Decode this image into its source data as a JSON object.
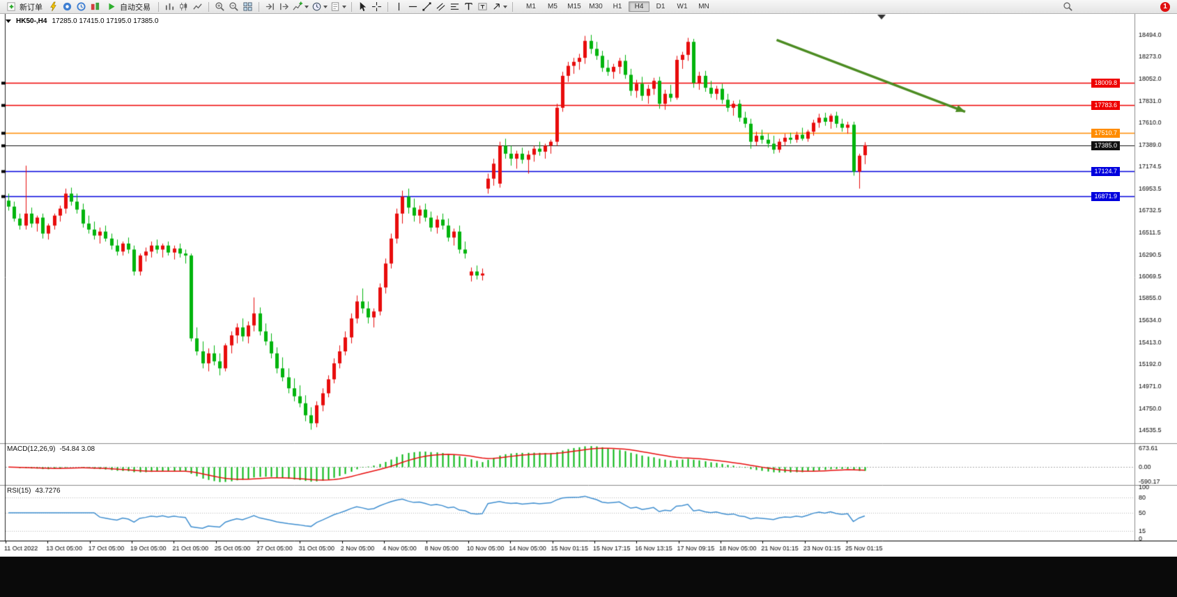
{
  "toolbar": {
    "new_order_label": "新订单",
    "auto_trading_label": "自动交易",
    "timeframes": [
      "M1",
      "M5",
      "M15",
      "M30",
      "H1",
      "H4",
      "D1",
      "W1",
      "MN"
    ],
    "active_timeframe": "H4",
    "notification_count": "1",
    "icon_names": [
      "new-order-icon",
      "lightning-icon",
      "terminal-icon",
      "navigator-icon",
      "market-watch-icon",
      "auto-trading-play-icon",
      "bar-chart-icon",
      "candlestick-icon",
      "line-chart-icon",
      "zoom-in-icon",
      "zoom-out-icon",
      "tile-windows-icon",
      "auto-scroll-icon",
      "chart-shift-icon",
      "indicators-icon",
      "periods-icon",
      "templates-icon",
      "cursor-icon",
      "crosshair-icon",
      "vertical-line-icon",
      "horizontal-line-icon",
      "trendline-icon",
      "channel-icon",
      "fibonacci-icon",
      "text-icon",
      "label-icon",
      "arrows-icon",
      "search-icon"
    ]
  },
  "chart_data": [
    {
      "type": "candlestick",
      "symbol": "HK50-,H4",
      "timeframe": "H4",
      "ohlc_display": "17285.0 17415.0 17195.0 17385.0",
      "ylim": [
        14400,
        18700
      ],
      "y_axis_labels": [
        "18494.0",
        "18273.0",
        "18052.0",
        "17831.0",
        "17610.0",
        "17389.0",
        "17174.5",
        "16953.5",
        "16732.5",
        "16511.5",
        "16290.5",
        "16069.5",
        "15855.0",
        "15634.0",
        "15413.0",
        "15192.0",
        "14971.0",
        "14750.0",
        "14535.5"
      ],
      "x_axis_labels": [
        "11 Oct 2022",
        "13 Oct 05:00",
        "17 Oct 05:00",
        "19 Oct 05:00",
        "21 Oct 05:00",
        "25 Oct 05:00",
        "27 Oct 05:00",
        "31 Oct 05:00",
        "2 Nov 05:00",
        "4 Nov 05:00",
        "8 Nov 05:00",
        "10 Nov 05:00",
        "14 Nov 05:00",
        "15 Nov 01:15",
        "15 Nov 17:15",
        "16 Nov 13:15",
        "17 Nov 09:15",
        "18 Nov 05:00",
        "21 Nov 01:15",
        "23 Nov 01:15",
        "25 Nov 01:15"
      ],
      "colors": {
        "up": "#e80c0c",
        "down": "#00b40c",
        "background": "#ffffff",
        "axis_text": "#000000"
      },
      "hlines": [
        {
          "value": 18009.8,
          "label": "18009.8",
          "color": "#ee0000"
        },
        {
          "value": 17783.6,
          "label": "17783.6",
          "color": "#ee0000"
        },
        {
          "value": 17510.7,
          "label": "17510.7",
          "color": "#ff8c00"
        },
        {
          "value": 17385.0,
          "label": "17385.0",
          "color": "#111111"
        },
        {
          "value": 17124.7,
          "label": "17124.7",
          "color": "#0000dd"
        },
        {
          "value": 16871.9,
          "label": "16871.9",
          "color": "#0000dd"
        }
      ],
      "trend_arrow": {
        "x_frac_start": 0.683,
        "price_start": 18440,
        "x_frac_end": 0.85,
        "price_end": 17720,
        "color": "#4c8c22"
      },
      "candles": [
        [
          16830,
          16900,
          16730,
          16770
        ],
        [
          16770,
          16820,
          16620,
          16650
        ],
        [
          16650,
          16700,
          16540,
          16580
        ],
        [
          16580,
          17180,
          16540,
          16700
        ],
        [
          16700,
          16760,
          16560,
          16600
        ],
        [
          16600,
          16680,
          16520,
          16660
        ],
        [
          16660,
          16700,
          16450,
          16500
        ],
        [
          16500,
          16600,
          16440,
          16580
        ],
        [
          16580,
          16700,
          16540,
          16680
        ],
        [
          16680,
          16780,
          16620,
          16750
        ],
        [
          16750,
          16950,
          16700,
          16900
        ],
        [
          16900,
          16960,
          16780,
          16820
        ],
        [
          16820,
          16900,
          16700,
          16740
        ],
        [
          16740,
          16800,
          16560,
          16600
        ],
        [
          16600,
          16680,
          16500,
          16540
        ],
        [
          16540,
          16620,
          16440,
          16480
        ],
        [
          16480,
          16560,
          16400,
          16520
        ],
        [
          16520,
          16580,
          16420,
          16450
        ],
        [
          16450,
          16500,
          16340,
          16380
        ],
        [
          16380,
          16440,
          16280,
          16320
        ],
        [
          16320,
          16420,
          16280,
          16400
        ],
        [
          16400,
          16460,
          16300,
          16340
        ],
        [
          16340,
          16380,
          16080,
          16120
        ],
        [
          16120,
          16300,
          16080,
          16280
        ],
        [
          16280,
          16360,
          16220,
          16320
        ],
        [
          16320,
          16420,
          16260,
          16380
        ],
        [
          16380,
          16440,
          16300,
          16340
        ],
        [
          16340,
          16400,
          16260,
          16380
        ],
        [
          16380,
          16420,
          16280,
          16310
        ],
        [
          16310,
          16380,
          16240,
          16350
        ],
        [
          16350,
          16400,
          16260,
          16300
        ],
        [
          16300,
          16340,
          16200,
          16280
        ],
        [
          16280,
          16300,
          15420,
          15450
        ],
        [
          15450,
          15560,
          15280,
          15320
        ],
        [
          15320,
          15420,
          15150,
          15200
        ],
        [
          15200,
          15350,
          15120,
          15300
        ],
        [
          15300,
          15380,
          15180,
          15220
        ],
        [
          15220,
          15300,
          15080,
          15150
        ],
        [
          15150,
          15400,
          15120,
          15380
        ],
        [
          15380,
          15520,
          15300,
          15480
        ],
        [
          15480,
          15600,
          15400,
          15560
        ],
        [
          15560,
          15650,
          15420,
          15470
        ],
        [
          15470,
          15620,
          15400,
          15580
        ],
        [
          15580,
          15860,
          15520,
          15700
        ],
        [
          15700,
          15760,
          15480,
          15520
        ],
        [
          15520,
          15600,
          15380,
          15420
        ],
        [
          15420,
          15500,
          15250,
          15300
        ],
        [
          15300,
          15360,
          15100,
          15150
        ],
        [
          15150,
          15260,
          15020,
          15060
        ],
        [
          15060,
          15150,
          14900,
          14950
        ],
        [
          14950,
          15050,
          14820,
          14870
        ],
        [
          14870,
          14980,
          14760,
          14800
        ],
        [
          14800,
          14880,
          14620,
          14680
        ],
        [
          14680,
          14760,
          14536,
          14600
        ],
        [
          14600,
          14820,
          14560,
          14780
        ],
        [
          14780,
          14950,
          14720,
          14900
        ],
        [
          14900,
          15080,
          14860,
          15040
        ],
        [
          15040,
          15250,
          15000,
          15200
        ],
        [
          15200,
          15380,
          15150,
          15320
        ],
        [
          15320,
          15520,
          15280,
          15460
        ],
        [
          15460,
          15700,
          15400,
          15650
        ],
        [
          15650,
          15880,
          15600,
          15820
        ],
        [
          15820,
          15950,
          15700,
          15750
        ],
        [
          15750,
          15820,
          15600,
          15660
        ],
        [
          15660,
          15750,
          15560,
          15720
        ],
        [
          15720,
          16000,
          15680,
          15960
        ],
        [
          15960,
          16250,
          15900,
          16200
        ],
        [
          16200,
          16500,
          16150,
          16450
        ],
        [
          16450,
          16750,
          16400,
          16700
        ],
        [
          16700,
          16930,
          16600,
          16870
        ],
        [
          16870,
          16950,
          16700,
          16760
        ],
        [
          16760,
          16850,
          16620,
          16680
        ],
        [
          16680,
          16780,
          16600,
          16740
        ],
        [
          16740,
          16800,
          16620,
          16660
        ],
        [
          16660,
          16720,
          16520,
          16560
        ],
        [
          16560,
          16680,
          16500,
          16640
        ],
        [
          16640,
          16700,
          16540,
          16580
        ],
        [
          16580,
          16650,
          16420,
          16460
        ],
        [
          16460,
          16550,
          16380,
          16520
        ],
        [
          16520,
          16580,
          16300,
          16340
        ],
        [
          16340,
          16420,
          16250,
          16300
        ],
        [
          16080,
          16160,
          16020,
          16120
        ],
        [
          16120,
          16180,
          16040,
          16080
        ],
        [
          16080,
          16150,
          16030,
          16100
        ],
        [
          16950,
          17100,
          16900,
          17050
        ],
        [
          17050,
          17250,
          16980,
          17200
        ],
        [
          17000,
          17420,
          16960,
          17380
        ],
        [
          17380,
          17450,
          17250,
          17300
        ],
        [
          17300,
          17380,
          17180,
          17250
        ],
        [
          17250,
          17330,
          17150,
          17300
        ],
        [
          17300,
          17360,
          17200,
          17240
        ],
        [
          17240,
          17330,
          17100,
          17290
        ],
        [
          17290,
          17380,
          17220,
          17350
        ],
        [
          17350,
          17420,
          17280,
          17320
        ],
        [
          17320,
          17400,
          17250,
          17380
        ],
        [
          17380,
          17440,
          17300,
          17420
        ],
        [
          17420,
          17800,
          17380,
          17760
        ],
        [
          17760,
          18120,
          17720,
          18080
        ],
        [
          18080,
          18220,
          18020,
          18180
        ],
        [
          18180,
          18260,
          18100,
          18220
        ],
        [
          18220,
          18300,
          18140,
          18260
        ],
        [
          18260,
          18480,
          18200,
          18430
        ],
        [
          18430,
          18490,
          18300,
          18350
        ],
        [
          18350,
          18420,
          18240,
          18280
        ],
        [
          18280,
          18330,
          18120,
          18160
        ],
        [
          18160,
          18240,
          18080,
          18120
        ],
        [
          18120,
          18200,
          18050,
          18170
        ],
        [
          18170,
          18260,
          18100,
          18230
        ],
        [
          18230,
          18290,
          18050,
          18090
        ],
        [
          18090,
          18150,
          17880,
          17930
        ],
        [
          17930,
          18040,
          17860,
          18000
        ],
        [
          18000,
          18070,
          17830,
          17880
        ],
        [
          17880,
          17990,
          17800,
          17950
        ],
        [
          17950,
          18060,
          17890,
          18030
        ],
        [
          18030,
          18070,
          17750,
          17800
        ],
        [
          17800,
          17940,
          17740,
          17900
        ],
        [
          17900,
          17990,
          17820,
          17860
        ],
        [
          17860,
          18280,
          17840,
          18240
        ],
        [
          18240,
          18320,
          18150,
          18290
        ],
        [
          18290,
          18460,
          18230,
          18420
        ],
        [
          18420,
          18450,
          17960,
          18010
        ],
        [
          18010,
          18120,
          17940,
          18080
        ],
        [
          18080,
          18130,
          17920,
          17960
        ],
        [
          17960,
          18030,
          17860,
          17900
        ],
        [
          17900,
          17980,
          17840,
          17950
        ],
        [
          17950,
          18000,
          17800,
          17840
        ],
        [
          17840,
          17900,
          17720,
          17760
        ],
        [
          17760,
          17830,
          17680,
          17800
        ],
        [
          17800,
          17840,
          17620,
          17660
        ],
        [
          17660,
          17720,
          17560,
          17600
        ],
        [
          17600,
          17650,
          17350,
          17420
        ],
        [
          17420,
          17520,
          17380,
          17480
        ],
        [
          17480,
          17540,
          17400,
          17440
        ],
        [
          17440,
          17500,
          17360,
          17400
        ],
        [
          17400,
          17480,
          17300,
          17340
        ],
        [
          17340,
          17450,
          17310,
          17420
        ],
        [
          17420,
          17500,
          17380,
          17460
        ],
        [
          17460,
          17510,
          17400,
          17440
        ],
        [
          17440,
          17520,
          17410,
          17490
        ],
        [
          17490,
          17560,
          17430,
          17450
        ],
        [
          17450,
          17540,
          17420,
          17520
        ],
        [
          17520,
          17640,
          17480,
          17610
        ],
        [
          17610,
          17700,
          17560,
          17660
        ],
        [
          17660,
          17710,
          17580,
          17620
        ],
        [
          17620,
          17700,
          17550,
          17680
        ],
        [
          17680,
          17720,
          17560,
          17600
        ],
        [
          17600,
          17650,
          17520,
          17560
        ],
        [
          17560,
          17620,
          17500,
          17590
        ],
        [
          17590,
          17620,
          17080,
          17120
        ],
        [
          17120,
          17300,
          16950,
          17280
        ],
        [
          17285,
          17415,
          17195,
          17385
        ]
      ]
    },
    {
      "type": "macd",
      "label": "MACD(12,26,9)",
      "values_display": "-54.84 3.08",
      "params": {
        "fast": 12,
        "slow": 26,
        "signal": 9
      },
      "y_axis_labels": [
        "673.61",
        "0.00",
        "-590.17"
      ],
      "colors": {
        "histogram": "#00b40c",
        "signal": "#e80c0c"
      }
    },
    {
      "type": "rsi",
      "label": "RSI(15)",
      "value_display": "43.7276",
      "period": 15,
      "levels": [
        80,
        50,
        15
      ],
      "y_axis_labels": [
        "100",
        "80",
        "50",
        "15",
        "0"
      ],
      "colors": {
        "line": "#3e8ed0",
        "levels": "#b5b5b5"
      }
    }
  ]
}
